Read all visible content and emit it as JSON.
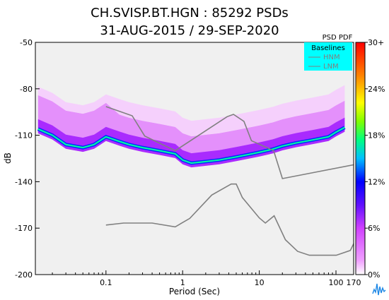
{
  "chart_data": {
    "type": "heatmap",
    "title_line1": "CH.SVISP.BT.HGN : 85292 PSDs",
    "title_line2": "31-AUG-2015 / 29-SEP-2020",
    "xlabel": "Period (Sec)",
    "ylabel": "dB",
    "x_scale": "log",
    "xlim": [
      0.012,
      170
    ],
    "ylim": [
      -200,
      -50
    ],
    "x_ticks": [
      "0.1",
      "1",
      "10",
      "100",
      "170"
    ],
    "x_tick_values": [
      0.1,
      1,
      10,
      100,
      170
    ],
    "y_ticks": [
      "-50",
      "-80",
      "-110",
      "-140",
      "-170",
      "-200"
    ],
    "y_tick_values": [
      -50,
      -80,
      -110,
      -140,
      -170,
      -200
    ],
    "legend": {
      "title": "Baselines",
      "entries": [
        "HNM",
        "LNM"
      ],
      "placement": "top-right"
    },
    "colorbar": {
      "title": "PSD PDF",
      "ticks": [
        "30+",
        "24%",
        "18%",
        "12%",
        "6%",
        "0%"
      ]
    },
    "series": [
      {
        "name": "HNM",
        "color": "#808080",
        "x": [
          0.1,
          0.22,
          0.32,
          0.8,
          3.8,
          4.6,
          6.3,
          7.9,
          15.4,
          20,
          354.8
        ],
        "y": [
          -91.5,
          -97.4,
          -110.5,
          -120,
          -98,
          -96.5,
          -101,
          -113.5,
          -120,
          -138,
          -126
        ]
      },
      {
        "name": "LNM",
        "color": "#808080",
        "x": [
          0.1,
          0.17,
          0.4,
          0.8,
          1.24,
          2.4,
          4.3,
          5,
          6,
          10,
          12,
          15.6,
          21.9,
          31.6,
          45,
          70,
          101,
          154,
          328,
          600
        ],
        "y": [
          -168,
          -166.7,
          -166.7,
          -169.2,
          -163.7,
          -148.6,
          -141.5,
          -141.5,
          -150.2,
          -163.4,
          -166.7,
          -162,
          -177.5,
          -185,
          -187.5,
          -187.5,
          -187.5,
          -184.4,
          -151.5,
          -150
        ]
      }
    ],
    "density_mode_curve": {
      "x": [
        0.013,
        0.02,
        0.03,
        0.05,
        0.07,
        0.1,
        0.15,
        0.2,
        0.3,
        0.5,
        0.8,
        1.0,
        1.3,
        2,
        3,
        5,
        8,
        10,
        15,
        20,
        30,
        50,
        80,
        100,
        130
      ],
      "y": [
        -106,
        -110,
        -116,
        -118,
        -116,
        -111,
        -114,
        -116,
        -118,
        -120,
        -122,
        -126,
        -128,
        -127,
        -126,
        -124,
        -122,
        -121,
        -119,
        -117,
        -115,
        -113,
        -111,
        -108,
        -105
      ]
    }
  },
  "colors": {
    "background_panel": "#f0f0f0",
    "hnm_lnm_line": "#808080",
    "legend_bg": "#00ffff",
    "legend_text": "#808080"
  }
}
